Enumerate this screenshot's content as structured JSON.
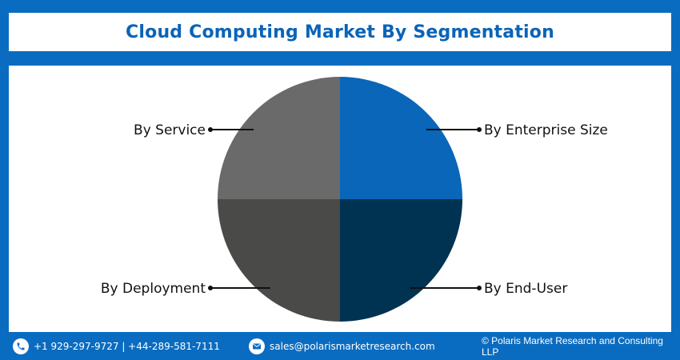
{
  "chart_data": {
    "type": "pie",
    "title": "Cloud Computing Market By Segmentation",
    "slices": [
      {
        "label": "By Enterprise Size",
        "value": 25,
        "color": "#0a66b8"
      },
      {
        "label": "By End-User",
        "value": 25,
        "color": "#003352"
      },
      {
        "label": "By Deployment",
        "value": 25,
        "color": "#4a4a48"
      },
      {
        "label": "By Service",
        "value": 25,
        "color": "#6a6a6a"
      }
    ]
  },
  "footer": {
    "phone": "+1 929-297-9727 | +44-289-581-7111",
    "email": "sales@polarismarketresearch.com",
    "copyright": "© Polaris Market Research and Consulting LLP",
    "phone_icon": "phone-icon",
    "email_icon": "email-icon"
  }
}
